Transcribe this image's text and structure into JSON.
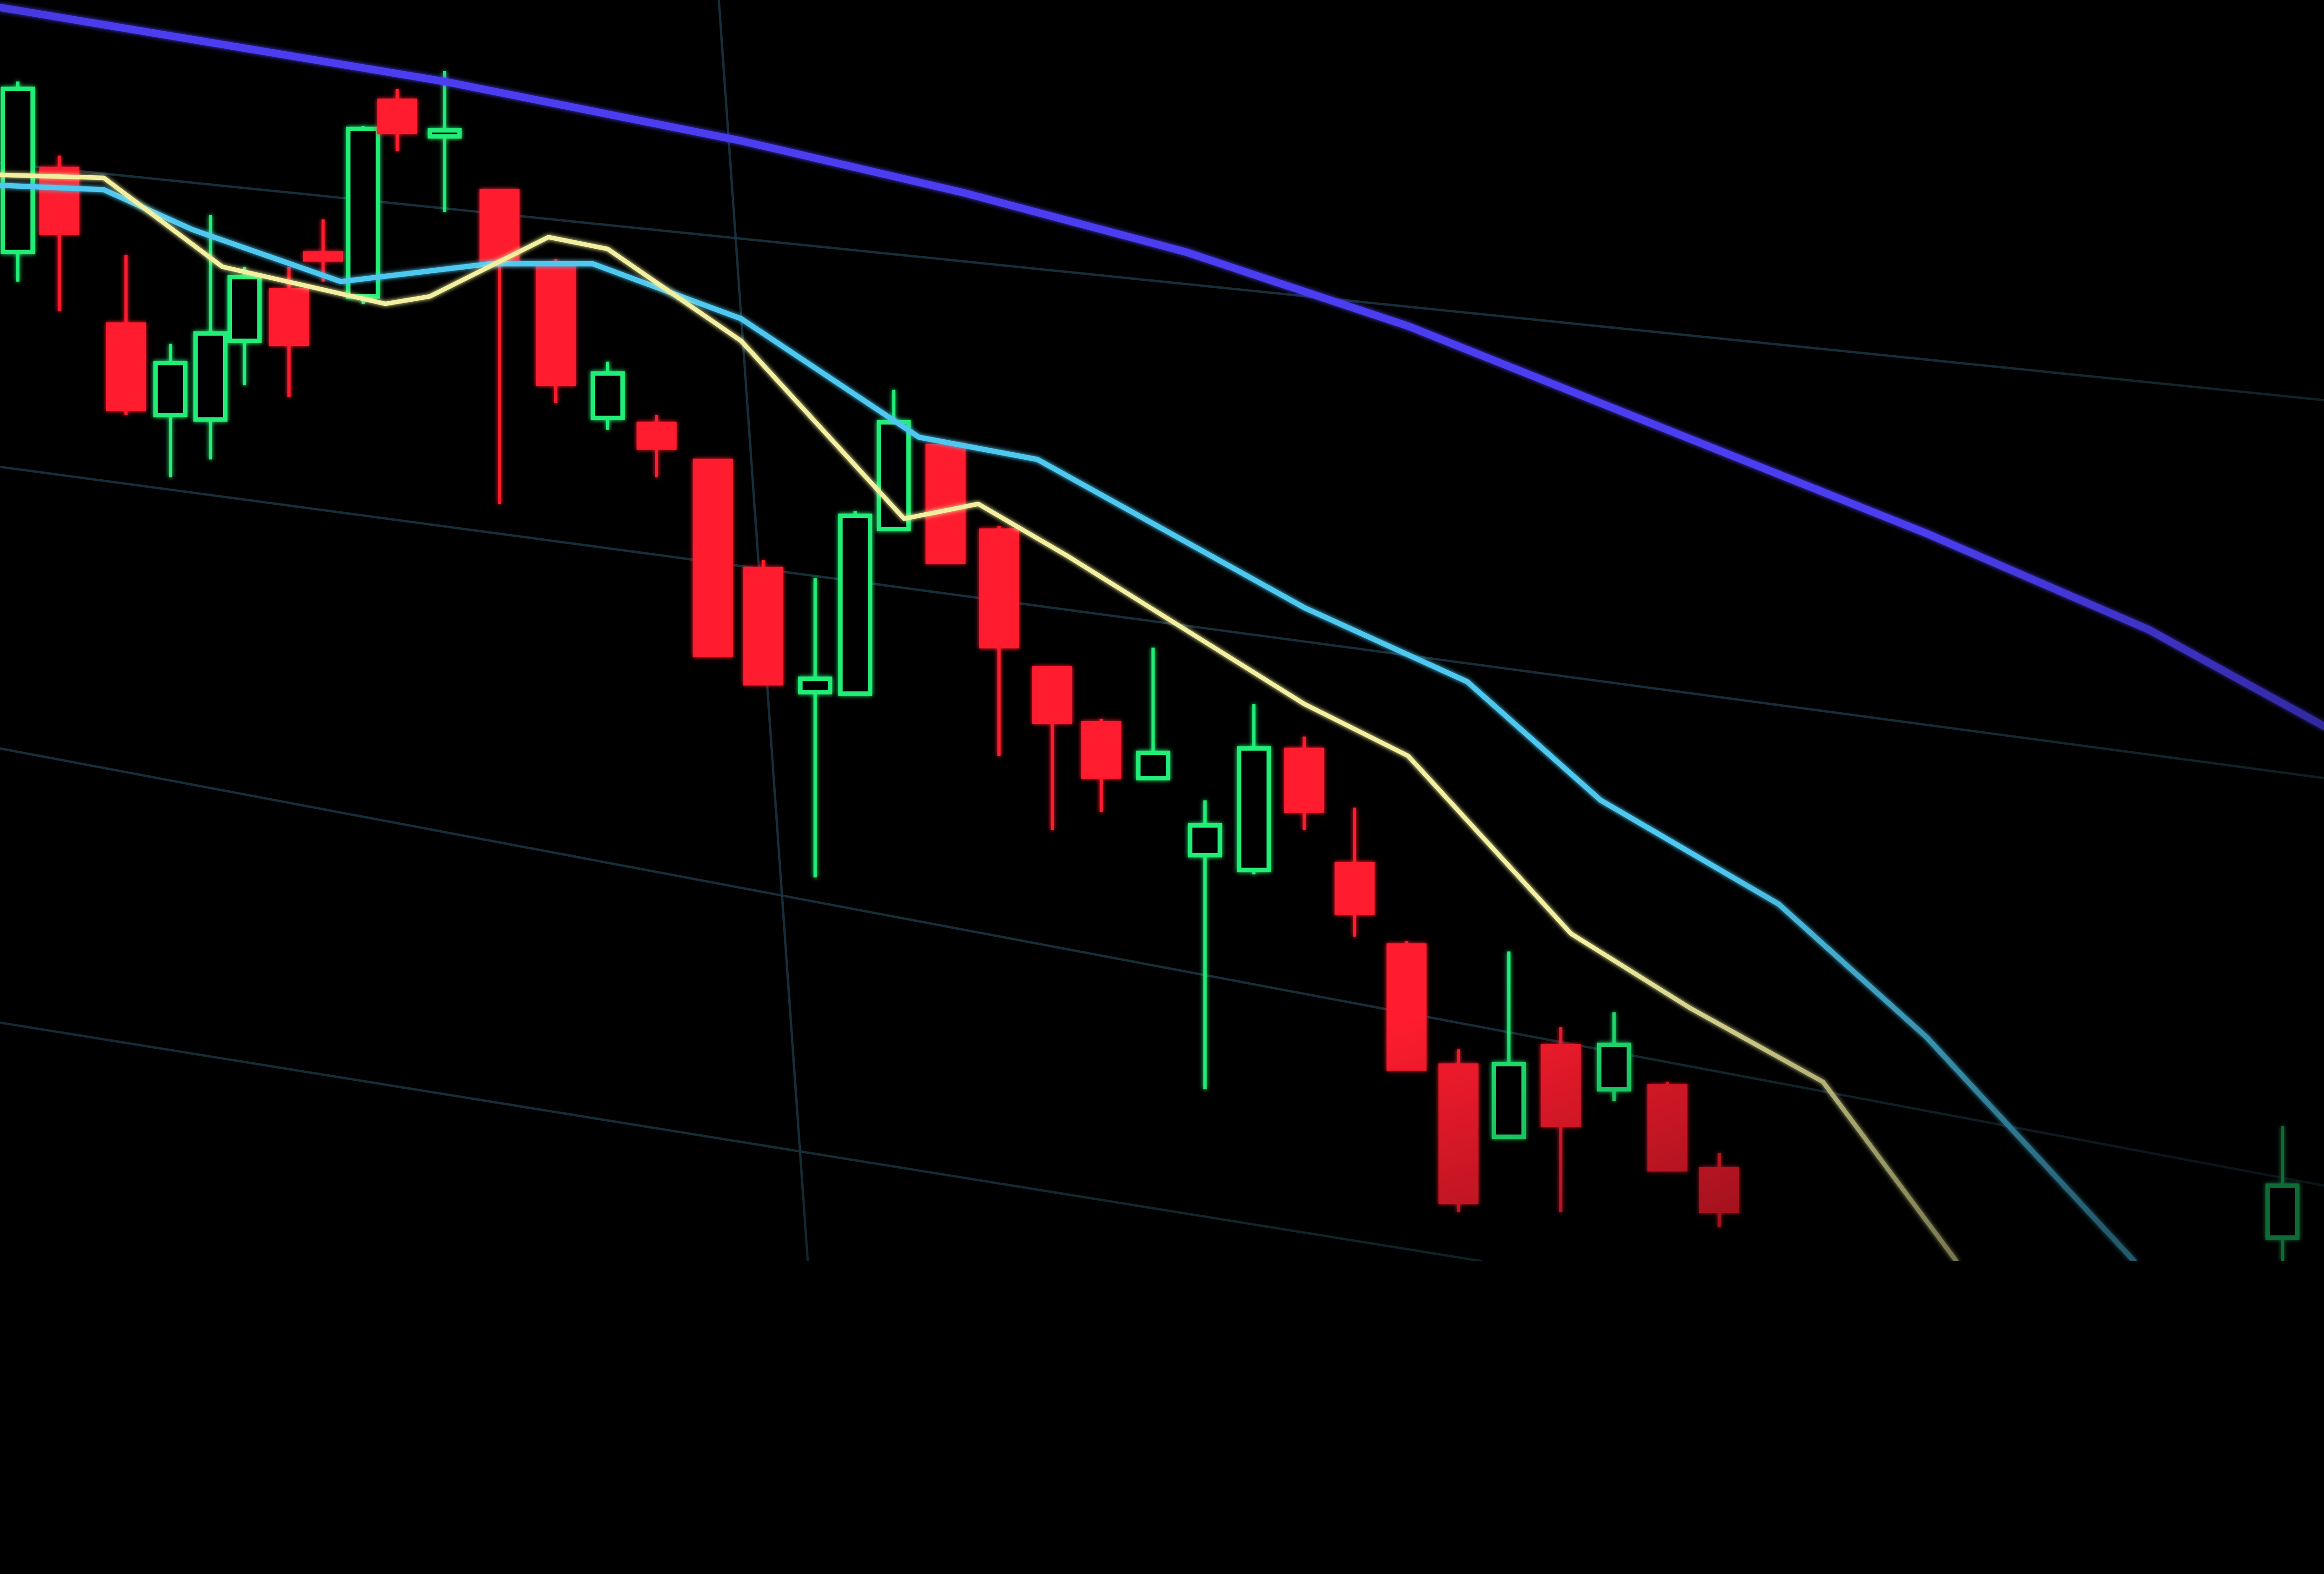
{
  "colors": {
    "background": "#000000",
    "bearish": "#ff1a2e",
    "bullish": "#22ee77",
    "long_average": "#4b3cf0",
    "mid_average": "#4fc8f0",
    "short_average": "#f2f0a0",
    "grid": "#1c3a48"
  }
}
